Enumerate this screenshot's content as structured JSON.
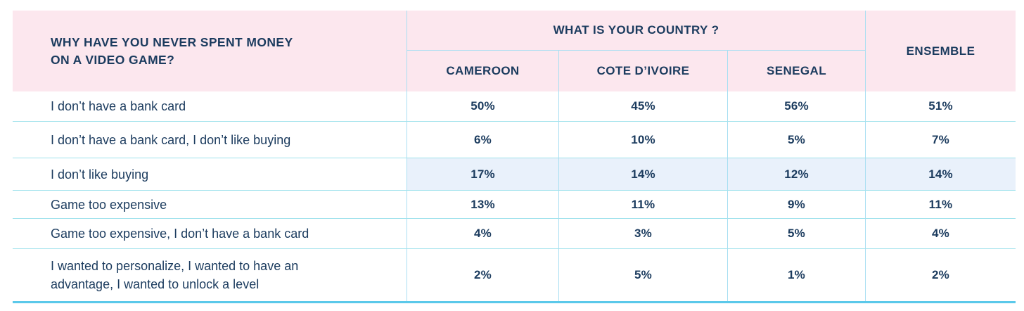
{
  "colors": {
    "header_bg": "#fce7ee",
    "text_navy": "#1b3b5e",
    "grid_vertical": "#a9dff2",
    "grid_horizontal": "#9fe2ec",
    "bottom_border": "#5bc9ea",
    "highlight_row_bg": "#e9f1fb"
  },
  "header": {
    "title_lines": [
      "WHY HAVE YOU NEVER SPENT MONEY",
      "ON A VIDEO GAME?"
    ],
    "country_question": "WHAT IS YOUR COUNTRY ?",
    "columns": [
      "CAMEROON",
      "COTE D’IVOIRE",
      "SENEGAL"
    ],
    "ensemble": "ENSEMBLE"
  },
  "rows": [
    {
      "label": "I don’t have a bank card",
      "values": [
        "50%",
        "45%",
        "56%",
        "51%"
      ],
      "highlighted": false
    },
    {
      "label": "I don’t have a bank card, I don’t like buying",
      "values": [
        "6%",
        "10%",
        "5%",
        "7%"
      ],
      "highlighted": false
    },
    {
      "label": "I don’t like buying",
      "values": [
        "17%",
        "14%",
        "12%",
        "14%"
      ],
      "highlighted": true
    },
    {
      "label": "Game too expensive",
      "values": [
        "13%",
        "11%",
        "9%",
        "11%"
      ],
      "highlighted": false
    },
    {
      "label": "Game too expensive, I don’t have a bank card",
      "values": [
        "4%",
        "3%",
        "5%",
        "4%"
      ],
      "highlighted": false
    },
    {
      "label": "I wanted to personalize, I wanted to have an advantage, I wanted to unlock a level",
      "values": [
        "2%",
        "5%",
        "1%",
        "2%"
      ],
      "highlighted": false
    }
  ],
  "chart_data": {
    "type": "table",
    "title": "WHY HAVE YOU NEVER SPENT MONEY ON A VIDEO GAME?",
    "column_group_label": "WHAT IS YOUR COUNTRY ?",
    "columns": [
      "CAMEROON",
      "COTE D’IVOIRE",
      "SENEGAL",
      "ENSEMBLE"
    ],
    "unit": "%",
    "rows": [
      {
        "label": "I don’t have a bank card",
        "values_pct": [
          50,
          45,
          56,
          51
        ]
      },
      {
        "label": "I don’t have a bank card, I don’t like buying",
        "values_pct": [
          6,
          10,
          5,
          7
        ]
      },
      {
        "label": "I don’t like buying",
        "values_pct": [
          17,
          14,
          12,
          14
        ]
      },
      {
        "label": "Game too expensive",
        "values_pct": [
          13,
          11,
          9,
          11
        ]
      },
      {
        "label": "Game too expensive, I don’t have a bank card",
        "values_pct": [
          4,
          3,
          5,
          4
        ]
      },
      {
        "label": "I wanted to personalize, I wanted to have an advantage, I wanted to unlock a level",
        "values_pct": [
          2,
          5,
          1,
          2
        ]
      }
    ]
  }
}
